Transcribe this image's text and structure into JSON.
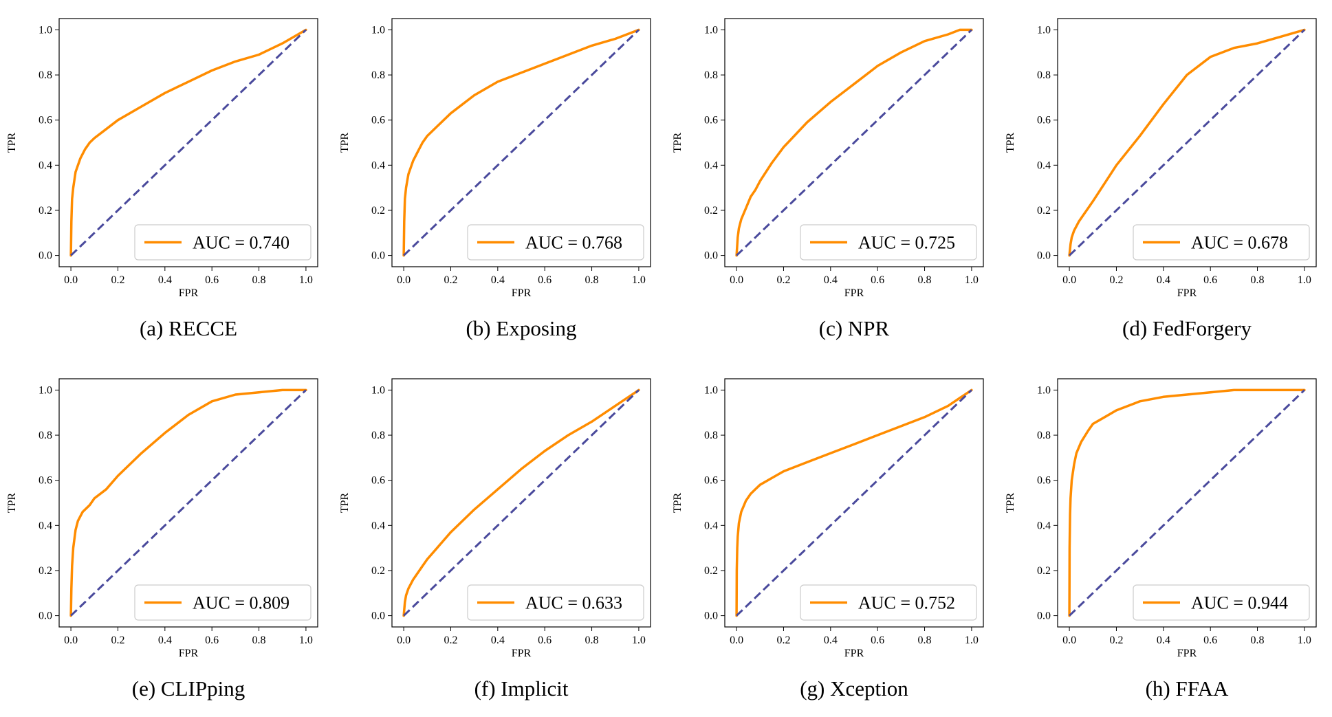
{
  "figure": {
    "colors": {
      "roc": "#ff8c00",
      "chance": "#4a4a9c",
      "legend_border": "#cccccc",
      "axes": "#000000"
    }
  },
  "chart_data": [
    {
      "type": "line",
      "caption": "(a) RECCE",
      "xlabel": "FPR",
      "ylabel": "TPR",
      "xlim": [
        0,
        1
      ],
      "ylim": [
        0,
        1
      ],
      "xticks": [
        "0.0",
        "0.2",
        "0.4",
        "0.6",
        "0.8",
        "1.0"
      ],
      "yticks": [
        "0.0",
        "0.2",
        "0.4",
        "0.6",
        "0.8",
        "1.0"
      ],
      "legend": "AUC = 0.740",
      "legend_position": "lower-right",
      "series": [
        {
          "name": "ROC",
          "style": "solid",
          "x": [
            0,
            0.002,
            0.005,
            0.01,
            0.02,
            0.04,
            0.06,
            0.08,
            0.1,
            0.15,
            0.2,
            0.3,
            0.4,
            0.5,
            0.6,
            0.7,
            0.8,
            0.9,
            1.0
          ],
          "y": [
            0,
            0.15,
            0.25,
            0.3,
            0.37,
            0.43,
            0.47,
            0.5,
            0.52,
            0.56,
            0.6,
            0.66,
            0.72,
            0.77,
            0.82,
            0.86,
            0.89,
            0.94,
            1.0
          ]
        },
        {
          "name": "Chance",
          "style": "dashed",
          "x": [
            0,
            1
          ],
          "y": [
            0,
            1
          ]
        }
      ]
    },
    {
      "type": "line",
      "caption": "(b) Exposing",
      "xlabel": "FPR",
      "ylabel": "TPR",
      "xlim": [
        0,
        1
      ],
      "ylim": [
        0,
        1
      ],
      "xticks": [
        "0.0",
        "0.2",
        "0.4",
        "0.6",
        "0.8",
        "1.0"
      ],
      "yticks": [
        "0.0",
        "0.2",
        "0.4",
        "0.6",
        "0.8",
        "1.0"
      ],
      "legend": "AUC = 0.768",
      "legend_position": "lower-right",
      "series": [
        {
          "name": "ROC",
          "style": "solid",
          "x": [
            0,
            0.002,
            0.005,
            0.01,
            0.02,
            0.04,
            0.06,
            0.08,
            0.1,
            0.15,
            0.2,
            0.3,
            0.4,
            0.5,
            0.6,
            0.7,
            0.8,
            0.9,
            1.0
          ],
          "y": [
            0,
            0.15,
            0.25,
            0.3,
            0.36,
            0.42,
            0.46,
            0.5,
            0.53,
            0.58,
            0.63,
            0.71,
            0.77,
            0.81,
            0.85,
            0.89,
            0.93,
            0.96,
            1.0
          ]
        },
        {
          "name": "Chance",
          "style": "dashed",
          "x": [
            0,
            1
          ],
          "y": [
            0,
            1
          ]
        }
      ]
    },
    {
      "type": "line",
      "caption": "(c) NPR",
      "xlabel": "FPR",
      "ylabel": "TPR",
      "xlim": [
        0,
        1
      ],
      "ylim": [
        0,
        1
      ],
      "xticks": [
        "0.0",
        "0.2",
        "0.4",
        "0.6",
        "0.8",
        "1.0"
      ],
      "yticks": [
        "0.0",
        "0.2",
        "0.4",
        "0.6",
        "0.8",
        "1.0"
      ],
      "legend": "AUC = 0.725",
      "legend_position": "lower-right",
      "series": [
        {
          "name": "ROC",
          "style": "solid",
          "x": [
            0,
            0.005,
            0.01,
            0.02,
            0.04,
            0.06,
            0.08,
            0.1,
            0.15,
            0.2,
            0.3,
            0.4,
            0.5,
            0.6,
            0.7,
            0.8,
            0.9,
            0.95,
            1.0
          ],
          "y": [
            0,
            0.08,
            0.12,
            0.16,
            0.21,
            0.26,
            0.29,
            0.33,
            0.41,
            0.48,
            0.59,
            0.68,
            0.76,
            0.84,
            0.9,
            0.95,
            0.98,
            1.0,
            1.0
          ]
        },
        {
          "name": "Chance",
          "style": "dashed",
          "x": [
            0,
            1
          ],
          "y": [
            0,
            1
          ]
        }
      ]
    },
    {
      "type": "line",
      "caption": "(d) FedForgery",
      "xlabel": "FPR",
      "ylabel": "TPR",
      "xlim": [
        0,
        1
      ],
      "ylim": [
        0,
        1
      ],
      "xticks": [
        "0.0",
        "0.2",
        "0.4",
        "0.6",
        "0.8",
        "1.0"
      ],
      "yticks": [
        "0.0",
        "0.2",
        "0.4",
        "0.6",
        "0.8",
        "1.0"
      ],
      "legend": "AUC = 0.678",
      "legend_position": "lower-right",
      "series": [
        {
          "name": "ROC",
          "style": "solid",
          "x": [
            0,
            0.005,
            0.01,
            0.02,
            0.04,
            0.06,
            0.08,
            0.1,
            0.15,
            0.2,
            0.3,
            0.4,
            0.5,
            0.6,
            0.7,
            0.8,
            0.9,
            1.0
          ],
          "y": [
            0,
            0.05,
            0.08,
            0.11,
            0.15,
            0.18,
            0.21,
            0.24,
            0.32,
            0.4,
            0.53,
            0.67,
            0.8,
            0.88,
            0.92,
            0.94,
            0.97,
            1.0
          ]
        },
        {
          "name": "Chance",
          "style": "dashed",
          "x": [
            0,
            1
          ],
          "y": [
            0,
            1
          ]
        }
      ]
    },
    {
      "type": "line",
      "caption": "(e) CLIPping",
      "xlabel": "FPR",
      "ylabel": "TPR",
      "xlim": [
        0,
        1
      ],
      "ylim": [
        0,
        1
      ],
      "xticks": [
        "0.0",
        "0.2",
        "0.4",
        "0.6",
        "0.8",
        "1.0"
      ],
      "yticks": [
        "0.0",
        "0.2",
        "0.4",
        "0.6",
        "0.8",
        "1.0"
      ],
      "legend": "AUC = 0.809",
      "legend_position": "lower-right",
      "series": [
        {
          "name": "ROC",
          "style": "solid",
          "x": [
            0,
            0.002,
            0.005,
            0.01,
            0.02,
            0.03,
            0.05,
            0.08,
            0.1,
            0.15,
            0.2,
            0.3,
            0.4,
            0.5,
            0.6,
            0.7,
            0.8,
            0.9,
            1.0
          ],
          "y": [
            0,
            0.12,
            0.22,
            0.3,
            0.38,
            0.42,
            0.46,
            0.49,
            0.52,
            0.56,
            0.62,
            0.72,
            0.81,
            0.89,
            0.95,
            0.98,
            0.99,
            1.0,
            1.0
          ]
        },
        {
          "name": "Chance",
          "style": "dashed",
          "x": [
            0,
            1
          ],
          "y": [
            0,
            1
          ]
        }
      ]
    },
    {
      "type": "line",
      "caption": "(f) Implicit",
      "xlabel": "FPR",
      "ylabel": "TPR",
      "xlim": [
        0,
        1
      ],
      "ylim": [
        0,
        1
      ],
      "xticks": [
        "0.0",
        "0.2",
        "0.4",
        "0.6",
        "0.8",
        "1.0"
      ],
      "yticks": [
        "0.0",
        "0.2",
        "0.4",
        "0.6",
        "0.8",
        "1.0"
      ],
      "legend": "AUC = 0.633",
      "legend_position": "lower-right",
      "series": [
        {
          "name": "ROC",
          "style": "solid",
          "x": [
            0,
            0.005,
            0.01,
            0.02,
            0.04,
            0.06,
            0.08,
            0.1,
            0.15,
            0.2,
            0.3,
            0.4,
            0.5,
            0.6,
            0.7,
            0.8,
            0.9,
            1.0
          ],
          "y": [
            0,
            0.06,
            0.09,
            0.12,
            0.16,
            0.19,
            0.22,
            0.25,
            0.31,
            0.37,
            0.47,
            0.56,
            0.65,
            0.73,
            0.8,
            0.86,
            0.93,
            1.0
          ]
        },
        {
          "name": "Chance",
          "style": "dashed",
          "x": [
            0,
            1
          ],
          "y": [
            0,
            1
          ]
        }
      ]
    },
    {
      "type": "line",
      "caption": "(g) Xception",
      "xlabel": "FPR",
      "ylabel": "TPR",
      "xlim": [
        0,
        1
      ],
      "ylim": [
        0,
        1
      ],
      "xticks": [
        "0.0",
        "0.2",
        "0.4",
        "0.6",
        "0.8",
        "1.0"
      ],
      "yticks": [
        "0.0",
        "0.2",
        "0.4",
        "0.6",
        "0.8",
        "1.0"
      ],
      "legend": "AUC = 0.752",
      "legend_position": "lower-right",
      "series": [
        {
          "name": "ROC",
          "style": "solid",
          "x": [
            0,
            0.001,
            0.003,
            0.005,
            0.01,
            0.02,
            0.04,
            0.06,
            0.08,
            0.1,
            0.15,
            0.2,
            0.3,
            0.4,
            0.5,
            0.6,
            0.7,
            0.8,
            0.9,
            1.0
          ],
          "y": [
            0,
            0.2,
            0.3,
            0.35,
            0.41,
            0.46,
            0.51,
            0.54,
            0.56,
            0.58,
            0.61,
            0.64,
            0.68,
            0.72,
            0.76,
            0.8,
            0.84,
            0.88,
            0.93,
            1.0
          ]
        },
        {
          "name": "Chance",
          "style": "dashed",
          "x": [
            0,
            1
          ],
          "y": [
            0,
            1
          ]
        }
      ]
    },
    {
      "type": "line",
      "caption": "(h) FFAA",
      "xlabel": "FPR",
      "ylabel": "TPR",
      "xlim": [
        0,
        1
      ],
      "ylim": [
        0,
        1
      ],
      "xticks": [
        "0.0",
        "0.2",
        "0.4",
        "0.6",
        "0.8",
        "1.0"
      ],
      "yticks": [
        "0.0",
        "0.2",
        "0.4",
        "0.6",
        "0.8",
        "1.0"
      ],
      "legend": "AUC = 0.944",
      "legend_position": "lower-right",
      "series": [
        {
          "name": "ROC",
          "style": "solid",
          "x": [
            0,
            0.001,
            0.003,
            0.005,
            0.01,
            0.02,
            0.03,
            0.05,
            0.08,
            0.1,
            0.15,
            0.2,
            0.3,
            0.4,
            0.5,
            0.6,
            0.7,
            0.8,
            0.9,
            1.0
          ],
          "y": [
            0,
            0.3,
            0.45,
            0.52,
            0.6,
            0.67,
            0.72,
            0.77,
            0.82,
            0.85,
            0.88,
            0.91,
            0.95,
            0.97,
            0.98,
            0.99,
            1.0,
            1.0,
            1.0,
            1.0
          ]
        },
        {
          "name": "Chance",
          "style": "dashed",
          "x": [
            0,
            1
          ],
          "y": [
            0,
            1
          ]
        }
      ]
    }
  ]
}
